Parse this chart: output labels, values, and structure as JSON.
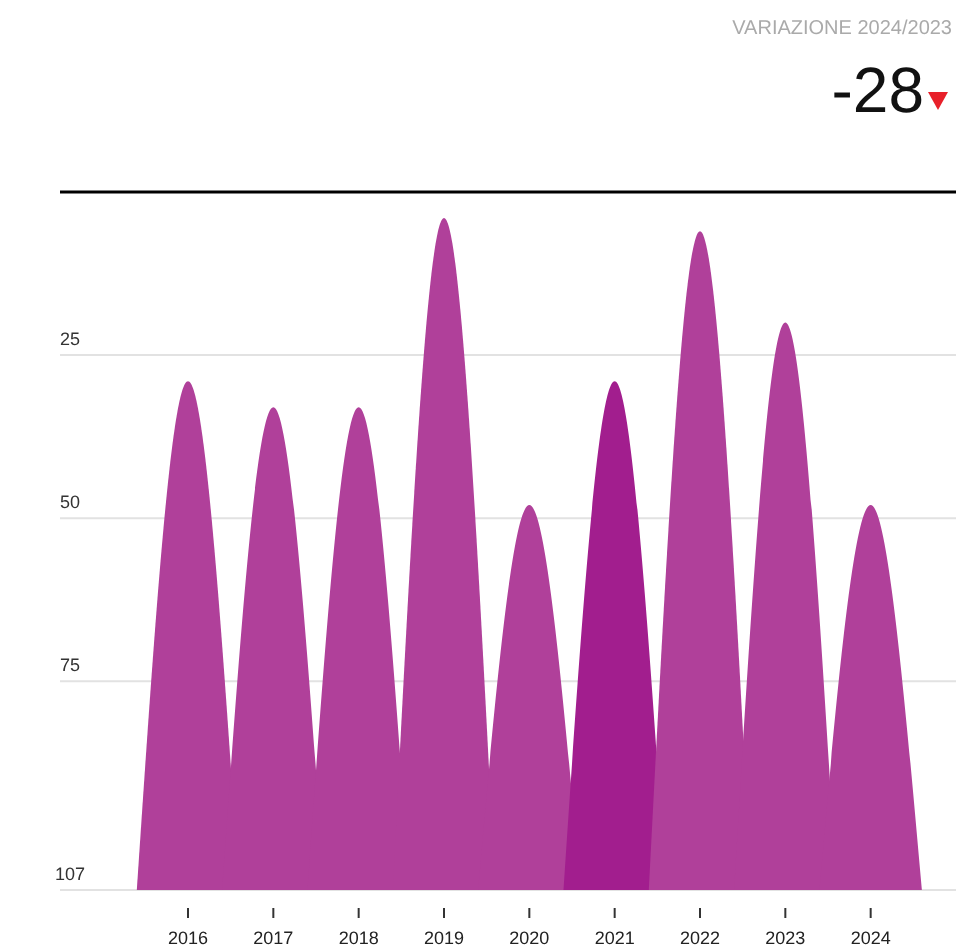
{
  "chart_data": {
    "type": "area",
    "series": [
      {
        "color": "#b0409a",
        "x": [
          2015.4,
          2016,
          2016.6
        ],
        "values": [
          107,
          29,
          107
        ]
      },
      {
        "color": "#b0409a",
        "x": [
          2016.4,
          2017,
          2017.6
        ],
        "values": [
          107,
          33,
          107
        ]
      },
      {
        "color": "#b0409a",
        "x": [
          2017.4,
          2018,
          2018.6
        ],
        "values": [
          107,
          33,
          107
        ]
      },
      {
        "color": "#b0409a",
        "x": [
          2018.4,
          2019,
          2019.6
        ],
        "values": [
          107,
          4,
          107
        ]
      },
      {
        "color": "#b0409a",
        "x": [
          2019.4,
          2020,
          2020.6
        ],
        "values": [
          107,
          48,
          107
        ]
      },
      {
        "color": "#a21e8e",
        "x": [
          2020.4,
          2021,
          2021.6
        ],
        "values": [
          107,
          29,
          107
        ]
      },
      {
        "color": "#b0409a",
        "x": [
          2021.4,
          2022,
          2022.6
        ],
        "values": [
          107,
          6,
          107
        ]
      },
      {
        "color": "#b0409a",
        "x": [
          2022.4,
          2023,
          2023.6
        ],
        "values": [
          107,
          20,
          107
        ]
      },
      {
        "color": "#b0409a",
        "x": [
          2023.4,
          2024,
          2024.6
        ],
        "values": [
          107,
          48,
          107
        ]
      }
    ],
    "xlim": [
      2014.5,
      2025
    ],
    "xticks": [
      2016,
      2017,
      2018,
      2019,
      2020,
      2021,
      2022,
      2023,
      2024
    ],
    "ylim": [
      107,
      0
    ],
    "yticks": [
      25,
      50,
      75,
      107
    ],
    "grid": "y",
    "annotations": [
      "VARIAZIONE 2024/2023",
      "-28"
    ]
  }
}
